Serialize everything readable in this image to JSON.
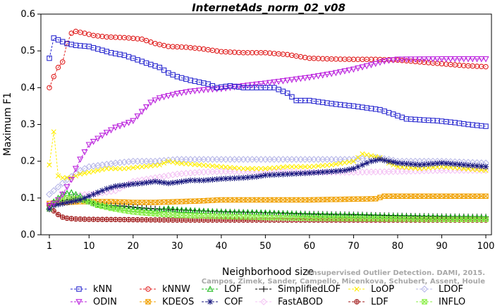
{
  "chart_data": {
    "type": "line",
    "title": "InternetAds_norm_02_v08",
    "xlabel": "Neighborhood size",
    "ylabel": "Maximum F1",
    "xlim": [
      1,
      100
    ],
    "ylim": [
      0,
      0.6
    ],
    "xticks": [
      1,
      10,
      20,
      30,
      40,
      50,
      60,
      70,
      80,
      90,
      100
    ],
    "yticks": [
      0.0,
      0.1,
      0.2,
      0.3,
      0.4,
      0.5,
      0.6
    ],
    "grid": false,
    "legend_position": "bottom",
    "watermark": [
      "Unsupervised Outlier Detection. DAMI, 2015.",
      "Campos, Zimek, Sander, Campello, Micenkova, Schubert, Assent, Houle"
    ],
    "series": [
      {
        "name": "kNN",
        "color": "#2a2ad0",
        "marker": "square",
        "points": [
          [
            1,
            0.48
          ],
          [
            2,
            0.535
          ],
          [
            3,
            0.53
          ],
          [
            5,
            0.52
          ],
          [
            7,
            0.515
          ],
          [
            10,
            0.512
          ],
          [
            12,
            0.505
          ],
          [
            15,
            0.495
          ],
          [
            18,
            0.488
          ],
          [
            20,
            0.48
          ],
          [
            23,
            0.467
          ],
          [
            26,
            0.455
          ],
          [
            28,
            0.44
          ],
          [
            30,
            0.43
          ],
          [
            33,
            0.42
          ],
          [
            35,
            0.415
          ],
          [
            37,
            0.41
          ],
          [
            39,
            0.4
          ],
          [
            42,
            0.405
          ],
          [
            45,
            0.4
          ],
          [
            48,
            0.4
          ],
          [
            52,
            0.4
          ],
          [
            55,
            0.385
          ],
          [
            57,
            0.365
          ],
          [
            60,
            0.365
          ],
          [
            63,
            0.36
          ],
          [
            66,
            0.355
          ],
          [
            70,
            0.35
          ],
          [
            73,
            0.345
          ],
          [
            76,
            0.34
          ],
          [
            79,
            0.328
          ],
          [
            82,
            0.315
          ],
          [
            86,
            0.312
          ],
          [
            89,
            0.31
          ],
          [
            93,
            0.305
          ],
          [
            96,
            0.3
          ],
          [
            100,
            0.295
          ]
        ]
      },
      {
        "name": "kNNW",
        "color": "#e02020",
        "marker": "circle",
        "points": [
          [
            1,
            0.4
          ],
          [
            2,
            0.43
          ],
          [
            3,
            0.455
          ],
          [
            4,
            0.47
          ],
          [
            5,
            0.52
          ],
          [
            6,
            0.548
          ],
          [
            7,
            0.553
          ],
          [
            9,
            0.548
          ],
          [
            11,
            0.542
          ],
          [
            14,
            0.538
          ],
          [
            18,
            0.536
          ],
          [
            22,
            0.532
          ],
          [
            25,
            0.52
          ],
          [
            28,
            0.512
          ],
          [
            32,
            0.51
          ],
          [
            36,
            0.505
          ],
          [
            40,
            0.498
          ],
          [
            45,
            0.495
          ],
          [
            50,
            0.495
          ],
          [
            55,
            0.49
          ],
          [
            60,
            0.48
          ],
          [
            65,
            0.478
          ],
          [
            70,
            0.477
          ],
          [
            75,
            0.477
          ],
          [
            80,
            0.475
          ],
          [
            85,
            0.47
          ],
          [
            90,
            0.465
          ],
          [
            95,
            0.46
          ],
          [
            100,
            0.457
          ]
        ]
      },
      {
        "name": "LOF",
        "color": "#22bb22",
        "marker": "triangle",
        "points": [
          [
            1,
            0.075
          ],
          [
            2,
            0.09
          ],
          [
            3,
            0.1
          ],
          [
            4,
            0.11
          ],
          [
            5,
            0.113
          ],
          [
            6,
            0.115
          ],
          [
            7,
            0.11
          ],
          [
            8,
            0.105
          ],
          [
            10,
            0.09
          ],
          [
            12,
            0.082
          ],
          [
            15,
            0.075
          ],
          [
            20,
            0.07
          ],
          [
            25,
            0.065
          ],
          [
            28,
            0.072
          ],
          [
            30,
            0.068
          ],
          [
            35,
            0.065
          ],
          [
            40,
            0.062
          ],
          [
            50,
            0.06
          ],
          [
            60,
            0.055
          ],
          [
            70,
            0.053
          ],
          [
            80,
            0.05
          ],
          [
            90,
            0.048
          ],
          [
            100,
            0.047
          ]
        ]
      },
      {
        "name": "SimplifiedLOF",
        "color": "#000000",
        "marker": "plus",
        "points": [
          [
            1,
            0.07
          ],
          [
            2,
            0.085
          ],
          [
            3,
            0.09
          ],
          [
            5,
            0.095
          ],
          [
            7,
            0.1
          ],
          [
            9,
            0.095
          ],
          [
            11,
            0.085
          ],
          [
            14,
            0.08
          ],
          [
            18,
            0.078
          ],
          [
            22,
            0.073
          ],
          [
            26,
            0.07
          ],
          [
            30,
            0.068
          ],
          [
            35,
            0.065
          ],
          [
            40,
            0.063
          ],
          [
            50,
            0.06
          ],
          [
            60,
            0.057
          ],
          [
            70,
            0.055
          ],
          [
            80,
            0.052
          ],
          [
            90,
            0.05
          ],
          [
            100,
            0.049
          ]
        ]
      },
      {
        "name": "LoOP",
        "color": "#ffee00",
        "marker": "x",
        "points": [
          [
            1,
            0.19
          ],
          [
            2,
            0.28
          ],
          [
            3,
            0.16
          ],
          [
            4,
            0.155
          ],
          [
            6,
            0.155
          ],
          [
            8,
            0.165
          ],
          [
            10,
            0.17
          ],
          [
            14,
            0.18
          ],
          [
            18,
            0.18
          ],
          [
            22,
            0.185
          ],
          [
            26,
            0.19
          ],
          [
            28,
            0.2
          ],
          [
            30,
            0.195
          ],
          [
            35,
            0.19
          ],
          [
            40,
            0.185
          ],
          [
            45,
            0.18
          ],
          [
            50,
            0.18
          ],
          [
            55,
            0.185
          ],
          [
            60,
            0.185
          ],
          [
            65,
            0.19
          ],
          [
            70,
            0.2
          ],
          [
            72,
            0.22
          ],
          [
            74,
            0.215
          ],
          [
            76,
            0.21
          ],
          [
            78,
            0.195
          ],
          [
            80,
            0.185
          ],
          [
            85,
            0.18
          ],
          [
            90,
            0.185
          ],
          [
            95,
            0.18
          ],
          [
            100,
            0.175
          ]
        ]
      },
      {
        "name": "LDOF",
        "color": "#b8b8e8",
        "marker": "diamond",
        "points": [
          [
            1,
            0.11
          ],
          [
            3,
            0.13
          ],
          [
            5,
            0.15
          ],
          [
            8,
            0.175
          ],
          [
            10,
            0.185
          ],
          [
            13,
            0.19
          ],
          [
            16,
            0.195
          ],
          [
            20,
            0.2
          ],
          [
            25,
            0.2
          ],
          [
            30,
            0.205
          ],
          [
            40,
            0.205
          ],
          [
            50,
            0.205
          ],
          [
            60,
            0.205
          ],
          [
            70,
            0.205
          ],
          [
            75,
            0.21
          ],
          [
            78,
            0.205
          ],
          [
            80,
            0.2
          ],
          [
            90,
            0.2
          ],
          [
            100,
            0.195
          ]
        ]
      },
      {
        "name": "ODIN",
        "color": "#bb22dd",
        "marker": "down-triangle",
        "points": [
          [
            1,
            0.08
          ],
          [
            2,
            0.085
          ],
          [
            3,
            0.095
          ],
          [
            4,
            0.11
          ],
          [
            5,
            0.13
          ],
          [
            6,
            0.15
          ],
          [
            7,
            0.18
          ],
          [
            8,
            0.205
          ],
          [
            9,
            0.225
          ],
          [
            10,
            0.245
          ],
          [
            12,
            0.262
          ],
          [
            14,
            0.278
          ],
          [
            16,
            0.292
          ],
          [
            18,
            0.3
          ],
          [
            20,
            0.31
          ],
          [
            22,
            0.335
          ],
          [
            24,
            0.36
          ],
          [
            26,
            0.372
          ],
          [
            28,
            0.378
          ],
          [
            30,
            0.384
          ],
          [
            33,
            0.39
          ],
          [
            36,
            0.394
          ],
          [
            40,
            0.397
          ],
          [
            45,
            0.405
          ],
          [
            50,
            0.412
          ],
          [
            55,
            0.42
          ],
          [
            60,
            0.428
          ],
          [
            65,
            0.438
          ],
          [
            70,
            0.45
          ],
          [
            74,
            0.462
          ],
          [
            77,
            0.472
          ],
          [
            80,
            0.477
          ],
          [
            90,
            0.478
          ],
          [
            100,
            0.478
          ]
        ]
      },
      {
        "name": "KDEOS",
        "color": "#f0a000",
        "marker": "square-x",
        "points": [
          [
            1,
            0.085
          ],
          [
            3,
            0.088
          ],
          [
            5,
            0.088
          ],
          [
            8,
            0.09
          ],
          [
            10,
            0.09
          ],
          [
            15,
            0.09
          ],
          [
            20,
            0.088
          ],
          [
            25,
            0.088
          ],
          [
            30,
            0.09
          ],
          [
            35,
            0.092
          ],
          [
            40,
            0.095
          ],
          [
            50,
            0.095
          ],
          [
            60,
            0.095
          ],
          [
            70,
            0.097
          ],
          [
            75,
            0.098
          ],
          [
            77,
            0.105
          ],
          [
            80,
            0.105
          ],
          [
            90,
            0.105
          ],
          [
            100,
            0.105
          ]
        ]
      },
      {
        "name": "COF",
        "color": "#1a1a80",
        "marker": "star",
        "points": [
          [
            1,
            0.07
          ],
          [
            2,
            0.08
          ],
          [
            4,
            0.085
          ],
          [
            6,
            0.09
          ],
          [
            8,
            0.095
          ],
          [
            10,
            0.105
          ],
          [
            12,
            0.115
          ],
          [
            14,
            0.125
          ],
          [
            16,
            0.132
          ],
          [
            18,
            0.135
          ],
          [
            20,
            0.138
          ],
          [
            22,
            0.14
          ],
          [
            25,
            0.145
          ],
          [
            28,
            0.14
          ],
          [
            30,
            0.143
          ],
          [
            33,
            0.148
          ],
          [
            36,
            0.148
          ],
          [
            40,
            0.152
          ],
          [
            45,
            0.155
          ],
          [
            48,
            0.158
          ],
          [
            50,
            0.162
          ],
          [
            55,
            0.165
          ],
          [
            60,
            0.168
          ],
          [
            65,
            0.172
          ],
          [
            68,
            0.175
          ],
          [
            70,
            0.18
          ],
          [
            72,
            0.19
          ],
          [
            74,
            0.2
          ],
          [
            76,
            0.205
          ],
          [
            78,
            0.2
          ],
          [
            80,
            0.195
          ],
          [
            85,
            0.19
          ],
          [
            90,
            0.195
          ],
          [
            95,
            0.19
          ],
          [
            100,
            0.185
          ]
        ]
      },
      {
        "name": "FastABOD",
        "color": "#f4c4f4",
        "marker": "diamond",
        "points": [
          [
            1,
            0.07
          ],
          [
            3,
            0.09
          ],
          [
            5,
            0.1
          ],
          [
            8,
            0.108
          ],
          [
            12,
            0.112
          ],
          [
            16,
            0.12
          ],
          [
            20,
            0.145
          ],
          [
            25,
            0.155
          ],
          [
            30,
            0.165
          ],
          [
            35,
            0.17
          ],
          [
            40,
            0.172
          ],
          [
            50,
            0.172
          ],
          [
            60,
            0.17
          ],
          [
            70,
            0.17
          ],
          [
            80,
            0.172
          ],
          [
            90,
            0.175
          ],
          [
            100,
            0.175
          ]
        ]
      },
      {
        "name": "LDF",
        "color": "#a01818",
        "marker": "circle-plus",
        "points": [
          [
            1,
            0.08
          ],
          [
            2,
            0.065
          ],
          [
            3,
            0.055
          ],
          [
            4,
            0.048
          ],
          [
            5,
            0.045
          ],
          [
            7,
            0.043
          ],
          [
            10,
            0.042
          ],
          [
            20,
            0.041
          ],
          [
            30,
            0.04
          ],
          [
            40,
            0.04
          ],
          [
            60,
            0.04
          ],
          [
            80,
            0.04
          ],
          [
            100,
            0.04
          ]
        ]
      },
      {
        "name": "INFLO",
        "color": "#88ee44",
        "marker": "square-x",
        "points": [
          [
            1,
            0.07
          ],
          [
            3,
            0.095
          ],
          [
            5,
            0.1
          ],
          [
            7,
            0.098
          ],
          [
            10,
            0.09
          ],
          [
            12,
            0.08
          ],
          [
            15,
            0.072
          ],
          [
            20,
            0.062
          ],
          [
            25,
            0.057
          ],
          [
            30,
            0.053
          ],
          [
            40,
            0.05
          ],
          [
            50,
            0.047
          ],
          [
            60,
            0.045
          ],
          [
            70,
            0.044
          ],
          [
            80,
            0.043
          ],
          [
            90,
            0.042
          ],
          [
            100,
            0.042
          ]
        ]
      }
    ]
  }
}
